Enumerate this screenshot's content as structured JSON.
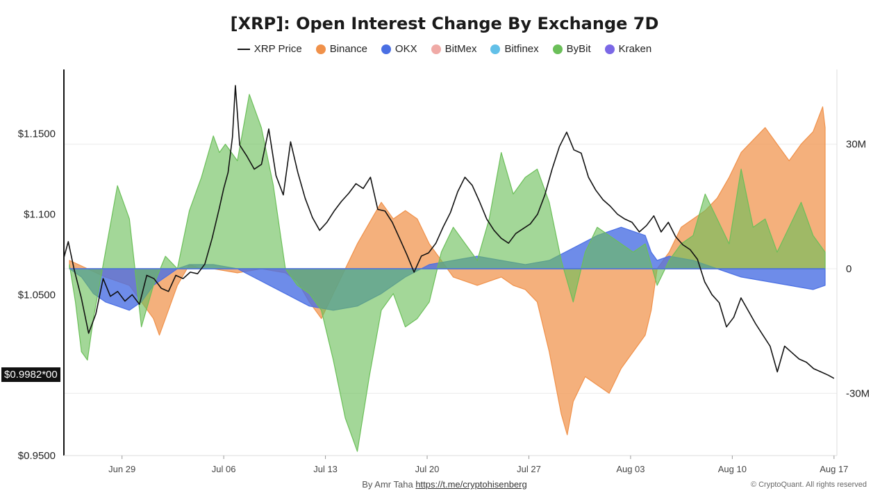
{
  "chart_data": {
    "type": "area",
    "title": "[XRP]: Open Interest Change By Exchange 7D",
    "legend_position": "top-center",
    "legend": [
      {
        "name": "XRP Price",
        "color": "#111111",
        "kind": "line"
      },
      {
        "name": "Binance",
        "color": "#f0914a",
        "kind": "dot"
      },
      {
        "name": "OKX",
        "color": "#4a6fe3",
        "kind": "dot"
      },
      {
        "name": "BitMex",
        "color": "#f0aaa6",
        "kind": "dot"
      },
      {
        "name": "Bitfinex",
        "color": "#62c0e8",
        "kind": "dot"
      },
      {
        "name": "ByBit",
        "color": "#6bbf59",
        "kind": "dot"
      },
      {
        "name": "Kraken",
        "color": "#7b68e6",
        "kind": "dot"
      }
    ],
    "x_ticks": [
      "Jun 29",
      "Jul 06",
      "Jul 13",
      "Jul 20",
      "Jul 27",
      "Aug 03",
      "Aug 10",
      "Aug 17"
    ],
    "x_tick_days": [
      4,
      11,
      18,
      25,
      32,
      39,
      46,
      53
    ],
    "x_range_days": [
      0,
      53.2
    ],
    "y_left": {
      "ticks": [
        "$1.1500",
        "$1.100",
        "$1.0500",
        "$0.9500"
      ],
      "tick_values": [
        1.15,
        1.1,
        1.05,
        0.95
      ],
      "range": [
        0.95,
        1.19
      ]
    },
    "y_right": {
      "ticks": [
        "30M",
        "0",
        "-30M"
      ],
      "tick_values": [
        30,
        0,
        -30
      ],
      "unit": "M",
      "range": [
        -45,
        48
      ]
    },
    "current_price_label": "$0.9982*00",
    "series": [
      {
        "name": "XRP Price",
        "axis": "left",
        "color": "#111111",
        "points": [
          [
            0,
            1.073
          ],
          [
            0.3,
            1.083
          ],
          [
            0.7,
            1.066
          ],
          [
            1.2,
            1.048
          ],
          [
            1.7,
            1.026
          ],
          [
            2.2,
            1.038
          ],
          [
            2.7,
            1.06
          ],
          [
            3.2,
            1.049
          ],
          [
            3.7,
            1.052
          ],
          [
            4.2,
            1.046
          ],
          [
            4.7,
            1.05
          ],
          [
            5.2,
            1.044
          ],
          [
            5.7,
            1.062
          ],
          [
            6.2,
            1.06
          ],
          [
            6.7,
            1.054
          ],
          [
            7.2,
            1.052
          ],
          [
            7.7,
            1.062
          ],
          [
            8.2,
            1.06
          ],
          [
            8.7,
            1.064
          ],
          [
            9.2,
            1.063
          ],
          [
            9.7,
            1.069
          ],
          [
            10.2,
            1.085
          ],
          [
            10.7,
            1.104
          ],
          [
            11.0,
            1.116
          ],
          [
            11.3,
            1.126
          ],
          [
            11.6,
            1.148
          ],
          [
            11.8,
            1.18
          ],
          [
            12.1,
            1.143
          ],
          [
            12.6,
            1.136
          ],
          [
            13.1,
            1.128
          ],
          [
            13.6,
            1.131
          ],
          [
            14.1,
            1.153
          ],
          [
            14.6,
            1.124
          ],
          [
            15.1,
            1.112
          ],
          [
            15.6,
            1.145
          ],
          [
            16.1,
            1.126
          ],
          [
            16.6,
            1.11
          ],
          [
            17.1,
            1.098
          ],
          [
            17.6,
            1.09
          ],
          [
            18.1,
            1.095
          ],
          [
            18.6,
            1.102
          ],
          [
            19.1,
            1.108
          ],
          [
            19.6,
            1.113
          ],
          [
            20.1,
            1.119
          ],
          [
            20.6,
            1.116
          ],
          [
            21.1,
            1.123
          ],
          [
            21.6,
            1.103
          ],
          [
            22.1,
            1.102
          ],
          [
            22.6,
            1.095
          ],
          [
            23.1,
            1.085
          ],
          [
            23.6,
            1.075
          ],
          [
            24.1,
            1.064
          ],
          [
            24.6,
            1.074
          ],
          [
            25.1,
            1.076
          ],
          [
            25.6,
            1.082
          ],
          [
            26.1,
            1.092
          ],
          [
            26.6,
            1.101
          ],
          [
            27.1,
            1.114
          ],
          [
            27.6,
            1.123
          ],
          [
            28.1,
            1.118
          ],
          [
            28.6,
            1.108
          ],
          [
            29.1,
            1.097
          ],
          [
            29.6,
            1.09
          ],
          [
            30.1,
            1.085
          ],
          [
            30.6,
            1.082
          ],
          [
            31.1,
            1.088
          ],
          [
            31.6,
            1.091
          ],
          [
            32.1,
            1.094
          ],
          [
            32.6,
            1.1
          ],
          [
            33.1,
            1.112
          ],
          [
            33.6,
            1.128
          ],
          [
            34.1,
            1.142
          ],
          [
            34.6,
            1.151
          ],
          [
            35.1,
            1.14
          ],
          [
            35.6,
            1.138
          ],
          [
            36.1,
            1.123
          ],
          [
            36.6,
            1.115
          ],
          [
            37.1,
            1.109
          ],
          [
            37.6,
            1.105
          ],
          [
            38.1,
            1.1
          ],
          [
            38.6,
            1.097
          ],
          [
            39.1,
            1.095
          ],
          [
            39.6,
            1.089
          ],
          [
            40.1,
            1.093
          ],
          [
            40.6,
            1.099
          ],
          [
            41.1,
            1.089
          ],
          [
            41.6,
            1.095
          ],
          [
            42.1,
            1.086
          ],
          [
            42.6,
            1.081
          ],
          [
            43.1,
            1.078
          ],
          [
            43.6,
            1.072
          ],
          [
            44.1,
            1.058
          ],
          [
            44.6,
            1.05
          ],
          [
            45.1,
            1.045
          ],
          [
            45.6,
            1.03
          ],
          [
            46.1,
            1.036
          ],
          [
            46.6,
            1.048
          ],
          [
            47.1,
            1.04
          ],
          [
            47.6,
            1.032
          ],
          [
            48.1,
            1.025
          ],
          [
            48.6,
            1.018
          ],
          [
            49.1,
            1.002
          ],
          [
            49.6,
            1.018
          ],
          [
            50.1,
            1.014
          ],
          [
            50.6,
            1.01
          ],
          [
            51.1,
            1.008
          ],
          [
            51.6,
            1.004
          ],
          [
            52.1,
            1.002
          ],
          [
            52.6,
            1.0
          ],
          [
            53.0,
            0.998
          ]
        ]
      },
      {
        "name": "Binance",
        "axis": "right",
        "color": "#f0914a",
        "points": [
          [
            0,
            2
          ],
          [
            1.5,
            0
          ],
          [
            3,
            -2
          ],
          [
            5,
            -4
          ],
          [
            6,
            -8
          ],
          [
            7,
            -12
          ],
          [
            7.5,
            -16
          ],
          [
            8,
            -12
          ],
          [
            9,
            -4
          ],
          [
            10,
            1
          ],
          [
            11,
            0
          ],
          [
            12,
            0
          ],
          [
            14,
            -1
          ],
          [
            16,
            0
          ],
          [
            18,
            -1
          ],
          [
            19,
            -3
          ],
          [
            20,
            -8
          ],
          [
            21,
            -12
          ],
          [
            22,
            -6
          ],
          [
            23,
            0
          ],
          [
            24,
            6
          ],
          [
            25,
            11
          ],
          [
            26,
            16
          ],
          [
            27,
            12
          ],
          [
            28,
            14
          ],
          [
            29,
            12
          ],
          [
            30,
            6
          ],
          [
            31,
            2
          ],
          [
            32,
            -2
          ],
          [
            33,
            -3
          ],
          [
            34,
            -4
          ],
          [
            35,
            -3
          ],
          [
            36,
            -2
          ],
          [
            37,
            -4
          ],
          [
            38,
            -5
          ],
          [
            39,
            -8
          ],
          [
            40,
            -20
          ],
          [
            41,
            -35
          ],
          [
            41.5,
            -40
          ],
          [
            42,
            -32
          ],
          [
            43,
            -26
          ],
          [
            44,
            -28
          ],
          [
            45,
            -30
          ],
          [
            46,
            -24
          ],
          [
            47,
            -20
          ],
          [
            48,
            -16
          ],
          [
            48.5,
            -10
          ],
          [
            49,
            0
          ],
          [
            50,
            4
          ],
          [
            51,
            10
          ],
          [
            52,
            12
          ],
          [
            53,
            14
          ],
          [
            54,
            17
          ],
          [
            55,
            22
          ],
          [
            56,
            28
          ],
          [
            57,
            31
          ],
          [
            58,
            34
          ],
          [
            59,
            30
          ],
          [
            60,
            26
          ],
          [
            61,
            30
          ],
          [
            62,
            33
          ],
          [
            62.8,
            39
          ],
          [
            63,
            34
          ]
        ]
      },
      {
        "name": "OKX",
        "axis": "right",
        "color": "#4a6fe3",
        "points": [
          [
            0,
            0
          ],
          [
            1,
            -2
          ],
          [
            2,
            -6
          ],
          [
            3,
            -8
          ],
          [
            4,
            -9
          ],
          [
            5,
            -10
          ],
          [
            6,
            -8
          ],
          [
            7,
            -4
          ],
          [
            8,
            -2
          ],
          [
            9,
            0
          ],
          [
            10,
            1
          ],
          [
            12,
            1
          ],
          [
            14,
            0
          ],
          [
            16,
            -3
          ],
          [
            18,
            -6
          ],
          [
            20,
            -9
          ],
          [
            22,
            -10
          ],
          [
            24,
            -9
          ],
          [
            26,
            -6
          ],
          [
            28,
            -2
          ],
          [
            30,
            1
          ],
          [
            32,
            2
          ],
          [
            34,
            3
          ],
          [
            36,
            2
          ],
          [
            38,
            1
          ],
          [
            40,
            2
          ],
          [
            42,
            5
          ],
          [
            44,
            8
          ],
          [
            46,
            10
          ],
          [
            47,
            9
          ],
          [
            48,
            8
          ],
          [
            48.5,
            4
          ],
          [
            49,
            2
          ],
          [
            50,
            3
          ],
          [
            52,
            2
          ],
          [
            54,
            0
          ],
          [
            56,
            -2
          ],
          [
            58,
            -3
          ],
          [
            60,
            -4
          ],
          [
            62,
            -5
          ],
          [
            63,
            -4
          ]
        ]
      },
      {
        "name": "ByBit",
        "axis": "right",
        "color": "#6bbf59",
        "points": [
          [
            0,
            1
          ],
          [
            0.5,
            -8
          ],
          [
            1,
            -20
          ],
          [
            1.5,
            -22
          ],
          [
            2,
            -12
          ],
          [
            3,
            4
          ],
          [
            4,
            20
          ],
          [
            5,
            12
          ],
          [
            6,
            -14
          ],
          [
            7,
            -4
          ],
          [
            8,
            3
          ],
          [
            9,
            0
          ],
          [
            10,
            14
          ],
          [
            11,
            22
          ],
          [
            12,
            32
          ],
          [
            12.5,
            28
          ],
          [
            13,
            30
          ],
          [
            14,
            26
          ],
          [
            15,
            42
          ],
          [
            16,
            34
          ],
          [
            17,
            20
          ],
          [
            18,
            0
          ],
          [
            19,
            -4
          ],
          [
            20,
            -6
          ],
          [
            21,
            -10
          ],
          [
            22,
            -22
          ],
          [
            23,
            -36
          ],
          [
            24,
            -44
          ],
          [
            25,
            -26
          ],
          [
            26,
            -10
          ],
          [
            27,
            -6
          ],
          [
            28,
            -14
          ],
          [
            29,
            -12
          ],
          [
            30,
            -8
          ],
          [
            31,
            4
          ],
          [
            32,
            10
          ],
          [
            33,
            6
          ],
          [
            34,
            2
          ],
          [
            35,
            12
          ],
          [
            36,
            28
          ],
          [
            37,
            18
          ],
          [
            38,
            22
          ],
          [
            39,
            24
          ],
          [
            40,
            16
          ],
          [
            41,
            2
          ],
          [
            42,
            -8
          ],
          [
            43,
            4
          ],
          [
            44,
            10
          ],
          [
            45,
            8
          ],
          [
            46,
            6
          ],
          [
            47,
            4
          ],
          [
            48,
            6
          ],
          [
            49,
            -4
          ],
          [
            50,
            2
          ],
          [
            51,
            6
          ],
          [
            52,
            8
          ],
          [
            53,
            18
          ],
          [
            54,
            12
          ],
          [
            55,
            6
          ],
          [
            56,
            24
          ],
          [
            57,
            10
          ],
          [
            58,
            12
          ],
          [
            59,
            4
          ],
          [
            60,
            10
          ],
          [
            61,
            16
          ],
          [
            62,
            8
          ],
          [
            63,
            4
          ]
        ]
      }
    ]
  },
  "footer": {
    "author": "By Amr Taha",
    "link": "https://t.me/cryptohisenberg",
    "copyright": "© CryptoQuant. All rights reserved"
  }
}
